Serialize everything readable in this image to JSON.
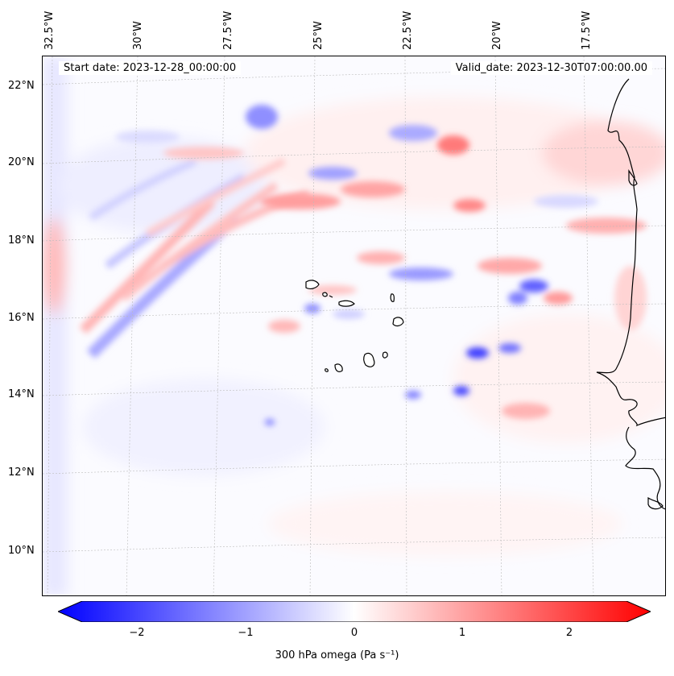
{
  "map": {
    "start_date": "Start date: 2023-12-28_00:00:00",
    "valid_date": "Valid_date: 2023-12-30T07:00:00.00",
    "lon_labels": [
      "32.5°W",
      "30°W",
      "27.5°W",
      "25°W",
      "22.5°W",
      "20°W",
      "17.5°W"
    ],
    "lat_labels": [
      "22°N",
      "20°N",
      "18°N",
      "16°N",
      "14°N",
      "12°N",
      "10°N"
    ],
    "gridlines": true,
    "coastline_color": "#000000"
  },
  "colorbar": {
    "label": "300 hPa omega (Pa s⁻¹)",
    "ticks": [
      "−2",
      "−1",
      "0",
      "1",
      "2"
    ],
    "range": [
      -2.6,
      2.6
    ],
    "min_color": "#0000ff",
    "mid_color": "#ffffff",
    "max_color": "#ff0000",
    "extend": "both"
  }
}
